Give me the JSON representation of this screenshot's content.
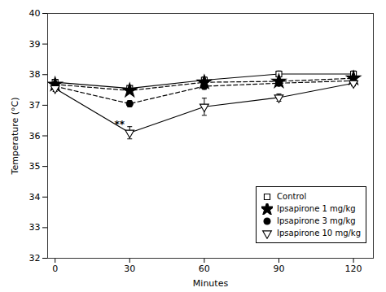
{
  "chart_data": {
    "type": "line",
    "x": [
      0,
      30,
      60,
      90,
      120
    ],
    "series": [
      {
        "name": "Control",
        "color": "#000000",
        "marker": "square-open",
        "line_style": "solid",
        "values": [
          37.75,
          37.55,
          37.82,
          38.02,
          38.02
        ],
        "errors": [
          0.08,
          0.08,
          0.1,
          0.1,
          0.1
        ]
      },
      {
        "name": "Ipsapirone 1 mg/kg",
        "color": "#000000",
        "marker": "star",
        "line_style": "dashed",
        "values": [
          37.68,
          37.48,
          37.75,
          37.78,
          37.88
        ],
        "errors": [
          0.07,
          0.07,
          0.08,
          0.07,
          0.07
        ]
      },
      {
        "name": "Ipsapirone 3 mg/kg",
        "color": "#000000",
        "marker": "circle",
        "line_style": "dashed",
        "values": [
          37.62,
          37.05,
          37.62,
          37.72,
          37.8
        ],
        "errors": [
          0.08,
          0.1,
          0.1,
          0.08,
          0.07
        ]
      },
      {
        "name": "Ipsapirone 10 mg/kg",
        "color": "#000000",
        "marker": "triangle-down-open",
        "line_style": "solid",
        "values": [
          37.55,
          36.1,
          36.95,
          37.25,
          37.72
        ],
        "errors": [
          0.1,
          0.2,
          0.28,
          0.12,
          0.09
        ]
      }
    ],
    "annotations": [
      {
        "x": 28,
        "y": 36.5,
        "text": "**"
      }
    ],
    "xlabel": "Minutes",
    "ylabel": "Temperature (°C)",
    "xlim": [
      -3,
      128
    ],
    "ylim": [
      32,
      40
    ],
    "xticks": [
      0,
      30,
      60,
      90,
      120
    ],
    "yticks": [
      32,
      33,
      34,
      35,
      36,
      37,
      38,
      39,
      40
    ],
    "legend": "lower right",
    "grid": false
  }
}
